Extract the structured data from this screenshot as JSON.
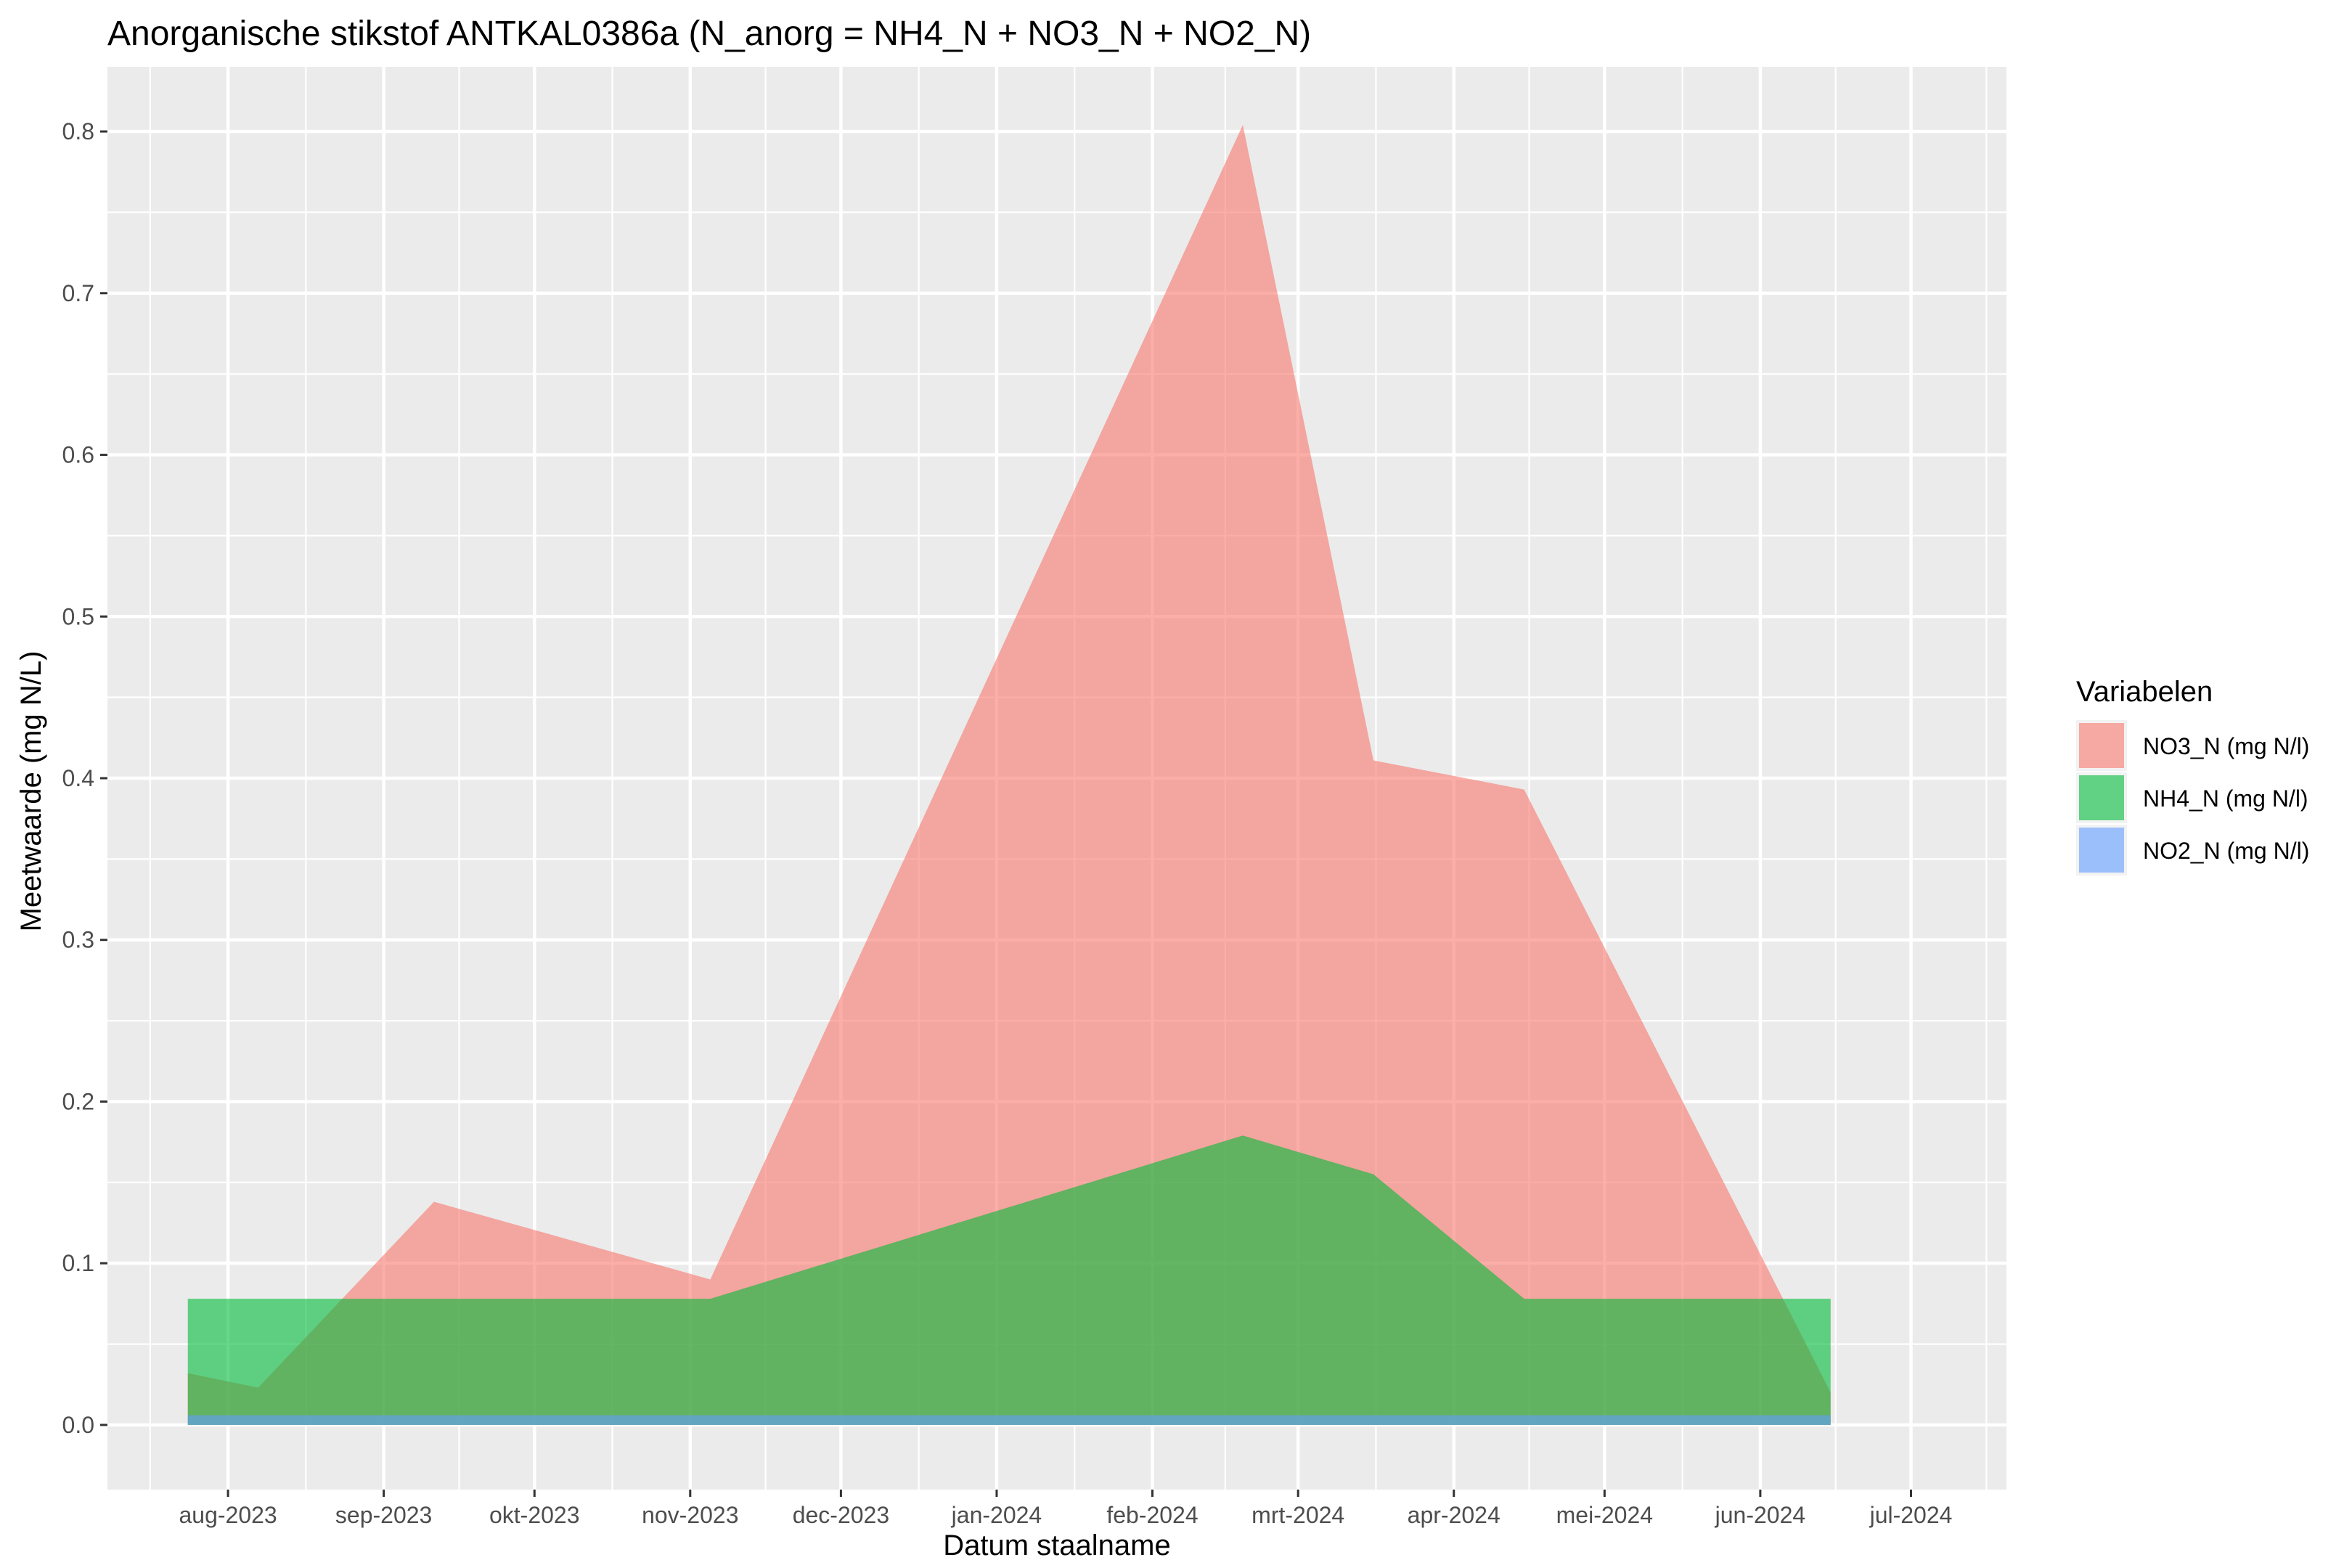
{
  "chart_data": {
    "type": "area",
    "title": "Anorganische stikstof ANTKAL0386a (N_anorg = NH4_N + NO3_N + NO2_N)",
    "xlabel": "Datum staalname",
    "ylabel": "Meetwaarde (mg N/L)",
    "xlim": [
      "2023-07-08",
      "2024-07-20"
    ],
    "ylim": [
      -0.04,
      0.84
    ],
    "x_ticks": [
      {
        "date": "2023-08-01",
        "label": "aug-2023"
      },
      {
        "date": "2023-09-01",
        "label": "sep-2023"
      },
      {
        "date": "2023-10-01",
        "label": "okt-2023"
      },
      {
        "date": "2023-11-01",
        "label": "nov-2023"
      },
      {
        "date": "2023-12-01",
        "label": "dec-2023"
      },
      {
        "date": "2024-01-01",
        "label": "jan-2024"
      },
      {
        "date": "2024-02-01",
        "label": "feb-2024"
      },
      {
        "date": "2024-03-01",
        "label": "mrt-2024"
      },
      {
        "date": "2024-04-01",
        "label": "apr-2024"
      },
      {
        "date": "2024-05-01",
        "label": "mei-2024"
      },
      {
        "date": "2024-06-01",
        "label": "jun-2024"
      },
      {
        "date": "2024-07-01",
        "label": "jul-2024"
      }
    ],
    "y_ticks": [
      {
        "value": 0.0,
        "label": "0.0"
      },
      {
        "value": 0.1,
        "label": "0.1"
      },
      {
        "value": 0.2,
        "label": "0.2"
      },
      {
        "value": 0.3,
        "label": "0.3"
      },
      {
        "value": 0.4,
        "label": "0.4"
      },
      {
        "value": 0.5,
        "label": "0.5"
      },
      {
        "value": 0.6,
        "label": "0.6"
      },
      {
        "value": 0.7,
        "label": "0.7"
      },
      {
        "value": 0.8,
        "label": "0.8"
      }
    ],
    "grid": true,
    "legend": {
      "title": "Variabelen",
      "position": "right"
    },
    "series": [
      {
        "name": "NO3_N (mg N/l)",
        "color": "#F8766D",
        "opacity": 0.6,
        "points": [
          {
            "x": "2023-07-24",
            "y": 0.032
          },
          {
            "x": "2023-08-07",
            "y": 0.023
          },
          {
            "x": "2023-09-11",
            "y": 0.138
          },
          {
            "x": "2023-11-05",
            "y": 0.09
          },
          {
            "x": "2024-02-19",
            "y": 0.804
          },
          {
            "x": "2024-03-16",
            "y": 0.411
          },
          {
            "x": "2024-04-15",
            "y": 0.393
          },
          {
            "x": "2024-06-15",
            "y": 0.02
          }
        ]
      },
      {
        "name": "NH4_N (mg N/l)",
        "color": "#00BA38",
        "opacity": 0.6,
        "points": [
          {
            "x": "2023-07-24",
            "y": 0.078
          },
          {
            "x": "2023-08-07",
            "y": 0.078
          },
          {
            "x": "2023-09-11",
            "y": 0.078
          },
          {
            "x": "2023-11-05",
            "y": 0.078
          },
          {
            "x": "2024-02-19",
            "y": 0.179
          },
          {
            "x": "2024-03-16",
            "y": 0.155
          },
          {
            "x": "2024-04-15",
            "y": 0.078
          },
          {
            "x": "2024-06-15",
            "y": 0.078
          }
        ]
      },
      {
        "name": "NO2_N (mg N/l)",
        "color": "#619CFF",
        "opacity": 0.6,
        "points": [
          {
            "x": "2023-07-24",
            "y": 0.006
          },
          {
            "x": "2023-08-07",
            "y": 0.006
          },
          {
            "x": "2023-09-11",
            "y": 0.006
          },
          {
            "x": "2023-11-05",
            "y": 0.006
          },
          {
            "x": "2024-02-19",
            "y": 0.006
          },
          {
            "x": "2024-03-16",
            "y": 0.006
          },
          {
            "x": "2024-04-15",
            "y": 0.006
          },
          {
            "x": "2024-06-15",
            "y": 0.006
          }
        ]
      }
    ]
  }
}
